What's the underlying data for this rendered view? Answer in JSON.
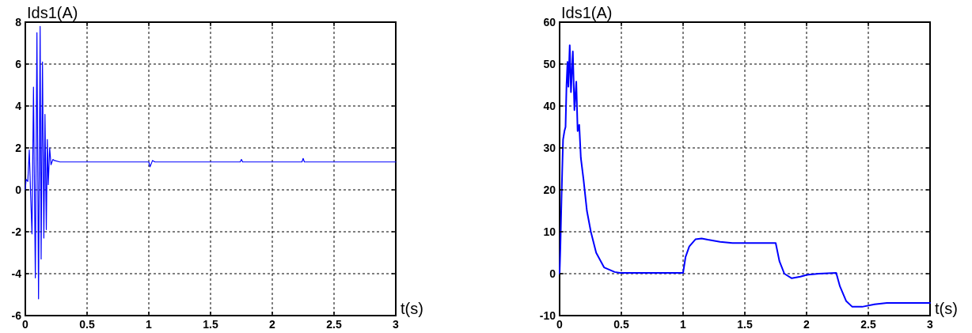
{
  "chart_data": [
    {
      "type": "line",
      "title": "Ids1(A)",
      "xlabel": "t(s)",
      "xlim": [
        0,
        3
      ],
      "ylim": [
        -6,
        8
      ],
      "xticks": [
        0,
        0.5,
        1,
        1.5,
        2,
        2.5,
        3
      ],
      "yticks": [
        -6,
        -4,
        -2,
        0,
        2,
        4,
        6,
        8
      ],
      "grid": true,
      "line_style": "solid",
      "series": [
        {
          "color": "#0000ff",
          "x": [
            0,
            0.006,
            0.02,
            0.032,
            0.043,
            0.054,
            0.066,
            0.081,
            0.094,
            0.107,
            0.12,
            0.128,
            0.139,
            0.15,
            0.159,
            0.17,
            0.178,
            0.186,
            0.197,
            0.208,
            0.223,
            0.235,
            0.28,
            1.0,
            1.01,
            1.03,
            1.05,
            1.74,
            1.75,
            1.76,
            2.24,
            2.25,
            2.26,
            3.0
          ],
          "values": [
            0,
            0.5,
            0.4,
            1.9,
            -0.25,
            -2.1,
            4.9,
            -4.2,
            7.5,
            -5.2,
            7.8,
            -3.3,
            6.1,
            -2.3,
            3.6,
            -1.9,
            2.4,
            0.25,
            2.0,
            1.2,
            1.45,
            1.4,
            1.33,
            1.33,
            1.1,
            1.4,
            1.33,
            1.33,
            1.45,
            1.33,
            1.33,
            1.5,
            1.33,
            1.33
          ]
        }
      ]
    },
    {
      "type": "line",
      "title": "Ids1(A)",
      "xlabel": "t(s)",
      "xlim": [
        0,
        3
      ],
      "ylim": [
        -10,
        60
      ],
      "xticks": [
        0,
        0.5,
        1,
        1.5,
        2,
        2.5,
        3
      ],
      "yticks": [
        -10,
        0,
        10,
        20,
        30,
        40,
        50,
        60
      ],
      "grid": true,
      "line_style": "solid",
      "series": [
        {
          "color": "#0000ff",
          "x": [
            0,
            0.006,
            0.013,
            0.021,
            0.028,
            0.039,
            0.048,
            0.056,
            0.064,
            0.071,
            0.082,
            0.092,
            0.107,
            0.12,
            0.135,
            0.146,
            0.159,
            0.172,
            0.193,
            0.221,
            0.253,
            0.296,
            0.36,
            0.446,
            0.49,
            1.0,
            1.02,
            1.05,
            1.1,
            1.15,
            1.2,
            1.3,
            1.4,
            1.75,
            1.78,
            1.82,
            1.88,
            1.95,
            2.0,
            2.1,
            2.24,
            2.27,
            2.32,
            2.37,
            2.45,
            2.55,
            2.65,
            3.0
          ],
          "values": [
            0,
            6,
            15,
            24.5,
            32,
            34,
            35,
            45,
            50.5,
            44.6,
            54.5,
            43.3,
            53,
            39,
            45.8,
            34,
            35.5,
            27.6,
            22.6,
            15,
            10,
            5,
            1.5,
            0.4,
            0.2,
            0.2,
            4,
            6.5,
            8.2,
            8.4,
            8.1,
            7.6,
            7.3,
            7.3,
            3,
            0,
            -1.1,
            -0.7,
            -0.3,
            0,
            0.2,
            -3,
            -6.5,
            -7.9,
            -7.9,
            -7.3,
            -7,
            -7
          ]
        }
      ]
    }
  ]
}
